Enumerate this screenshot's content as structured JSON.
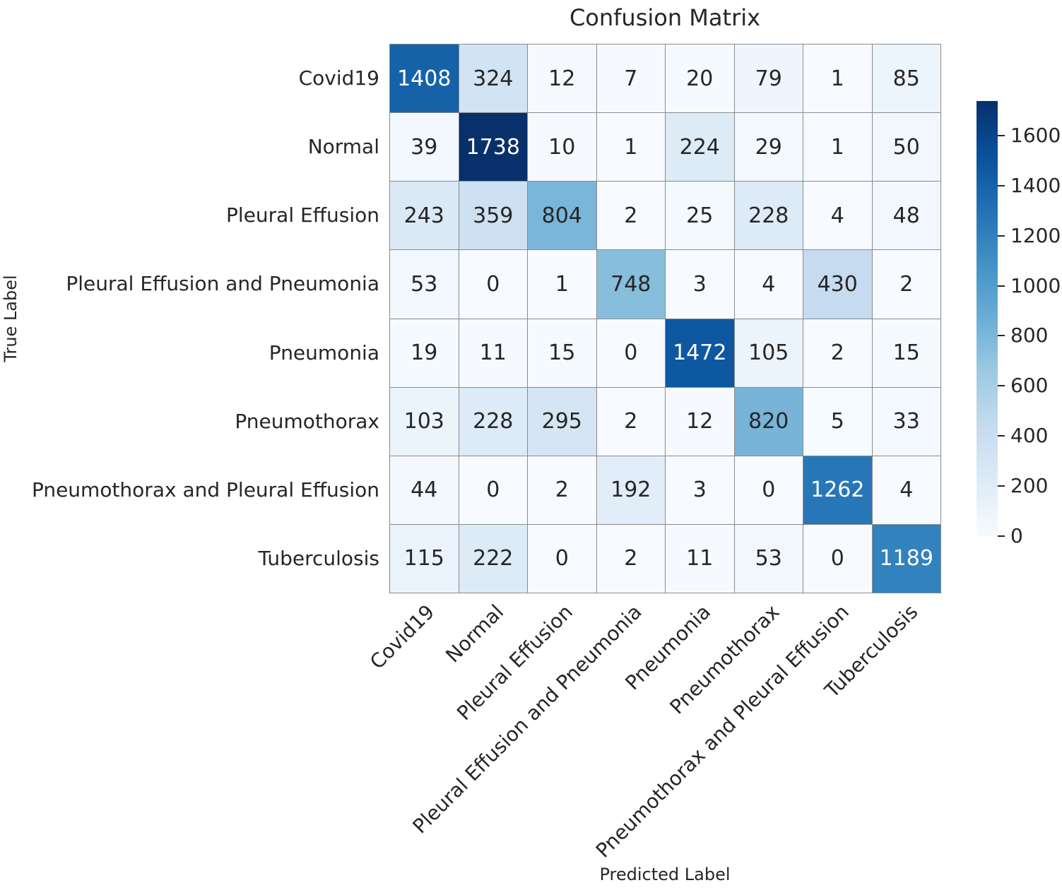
{
  "title": "Confusion Matrix",
  "chart_data": {
    "type": "heatmap",
    "title": "Confusion Matrix",
    "xlabel": "Predicted Label",
    "ylabel": "True Label",
    "categories": [
      "Covid19",
      "Normal",
      "Pleural Effusion",
      "Pleural Effusion and Pneumonia",
      "Pneumonia",
      "Pneumothorax",
      "Pneumothorax and Pleural Effusion",
      "Tuberculosis"
    ],
    "matrix": [
      [
        1408,
        324,
        12,
        7,
        20,
        79,
        1,
        85
      ],
      [
        39,
        1738,
        10,
        1,
        224,
        29,
        1,
        50
      ],
      [
        243,
        359,
        804,
        2,
        25,
        228,
        4,
        48
      ],
      [
        53,
        0,
        1,
        748,
        3,
        4,
        430,
        2
      ],
      [
        19,
        11,
        15,
        0,
        1472,
        105,
        2,
        15
      ],
      [
        103,
        228,
        295,
        2,
        12,
        820,
        5,
        33
      ],
      [
        44,
        0,
        2,
        192,
        3,
        0,
        1262,
        4
      ],
      [
        115,
        222,
        0,
        2,
        11,
        53,
        0,
        1189
      ]
    ],
    "vmin": 0,
    "vmax": 1738,
    "colormap": "Blues",
    "colormap_stops": [
      "#f7fbff",
      "#deebf7",
      "#c6dbef",
      "#9ecae1",
      "#6baed6",
      "#4292c6",
      "#2171b5",
      "#08519c",
      "#08306b"
    ],
    "colorbar_ticks": [
      0,
      200,
      400,
      600,
      800,
      1000,
      1200,
      1400,
      1600
    ],
    "legend_position": "right",
    "grid": true,
    "colors": {
      "line_color": "#8a8a8a",
      "annotation_dark": "#262626",
      "annotation_light": "#ffffff",
      "background": "#ffffff"
    }
  }
}
